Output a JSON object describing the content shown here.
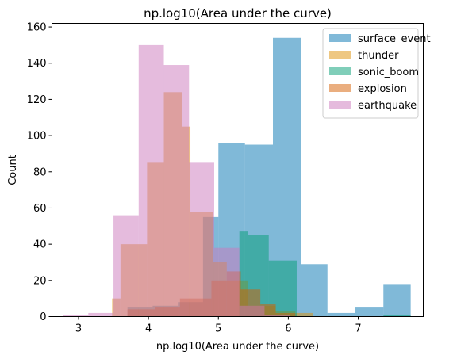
{
  "chart_data": {
    "type": "histogram",
    "title": "np.log10(Area under the curve)",
    "xlabel": "np.log10(Area under the curve)",
    "ylabel": "Count",
    "xlim": [
      2.62,
      7.93
    ],
    "ylim": [
      0,
      162
    ],
    "xticks": [
      "3",
      "4",
      "5",
      "6",
      "7"
    ],
    "yticks": [
      "0",
      "20",
      "40",
      "60",
      "80",
      "100",
      "120",
      "140",
      "160"
    ],
    "grid": false,
    "legend_position": "upper-right",
    "opacity": 0.5,
    "series": [
      {
        "name": "surface_event",
        "color": "#0173b2",
        "bins": [
          {
            "x0": 3.7,
            "x1": 4.06,
            "count": 5
          },
          {
            "x0": 4.06,
            "x1": 4.42,
            "count": 6
          },
          {
            "x0": 4.42,
            "x1": 4.78,
            "count": 8
          },
          {
            "x0": 4.78,
            "x1": 5.0,
            "count": 55
          },
          {
            "x0": 5.0,
            "x1": 5.38,
            "count": 96
          },
          {
            "x0": 5.38,
            "x1": 5.78,
            "count": 95
          },
          {
            "x0": 5.78,
            "x1": 6.18,
            "count": 154
          },
          {
            "x0": 6.18,
            "x1": 6.56,
            "count": 29
          },
          {
            "x0": 6.56,
            "x1": 6.96,
            "count": 2
          },
          {
            "x0": 6.96,
            "x1": 7.36,
            "count": 5
          },
          {
            "x0": 7.36,
            "x1": 7.75,
            "count": 18
          }
        ]
      },
      {
        "name": "thunder",
        "color": "#de8f05",
        "bins": [
          {
            "x0": 3.48,
            "x1": 3.6,
            "count": 10
          },
          {
            "x0": 3.6,
            "x1": 3.98,
            "count": 40
          },
          {
            "x0": 3.98,
            "x1": 4.22,
            "count": 85
          },
          {
            "x0": 4.22,
            "x1": 4.48,
            "count": 124
          },
          {
            "x0": 4.48,
            "x1": 4.6,
            "count": 105
          },
          {
            "x0": 4.6,
            "x1": 4.92,
            "count": 58
          },
          {
            "x0": 4.92,
            "x1": 5.12,
            "count": 30
          },
          {
            "x0": 5.12,
            "x1": 5.42,
            "count": 20
          },
          {
            "x0": 5.42,
            "x1": 5.82,
            "count": 6
          },
          {
            "x0": 5.82,
            "x1": 6.1,
            "count": 3
          },
          {
            "x0": 6.1,
            "x1": 6.35,
            "count": 2
          }
        ]
      },
      {
        "name": "sonic_boom",
        "color": "#029e73",
        "bins": [
          {
            "x0": 5.3,
            "x1": 5.42,
            "count": 47
          },
          {
            "x0": 5.42,
            "x1": 5.72,
            "count": 45
          },
          {
            "x0": 5.72,
            "x1": 6.12,
            "count": 31
          },
          {
            "x0": 7.36,
            "x1": 7.75,
            "count": 1
          }
        ]
      },
      {
        "name": "explosion",
        "color": "#d55e00",
        "bins": [
          {
            "x0": 3.7,
            "x1": 4.1,
            "count": 4
          },
          {
            "x0": 4.1,
            "x1": 4.45,
            "count": 5
          },
          {
            "x0": 4.45,
            "x1": 4.9,
            "count": 10
          },
          {
            "x0": 4.9,
            "x1": 5.12,
            "count": 20
          },
          {
            "x0": 5.12,
            "x1": 5.32,
            "count": 25
          },
          {
            "x0": 5.32,
            "x1": 5.6,
            "count": 15
          },
          {
            "x0": 5.6,
            "x1": 5.82,
            "count": 7
          },
          {
            "x0": 5.82,
            "x1": 6.1,
            "count": 2
          }
        ]
      },
      {
        "name": "earthquake",
        "color": "#cc78bc",
        "bins": [
          {
            "x0": 2.78,
            "x1": 3.14,
            "count": 1
          },
          {
            "x0": 3.14,
            "x1": 3.5,
            "count": 2
          },
          {
            "x0": 3.5,
            "x1": 3.86,
            "count": 56
          },
          {
            "x0": 3.86,
            "x1": 4.22,
            "count": 150
          },
          {
            "x0": 4.22,
            "x1": 4.58,
            "count": 139
          },
          {
            "x0": 4.58,
            "x1": 4.94,
            "count": 85
          },
          {
            "x0": 4.94,
            "x1": 5.3,
            "count": 38
          },
          {
            "x0": 5.3,
            "x1": 5.66,
            "count": 6
          },
          {
            "x0": 5.66,
            "x1": 6.02,
            "count": 1
          }
        ]
      }
    ]
  }
}
